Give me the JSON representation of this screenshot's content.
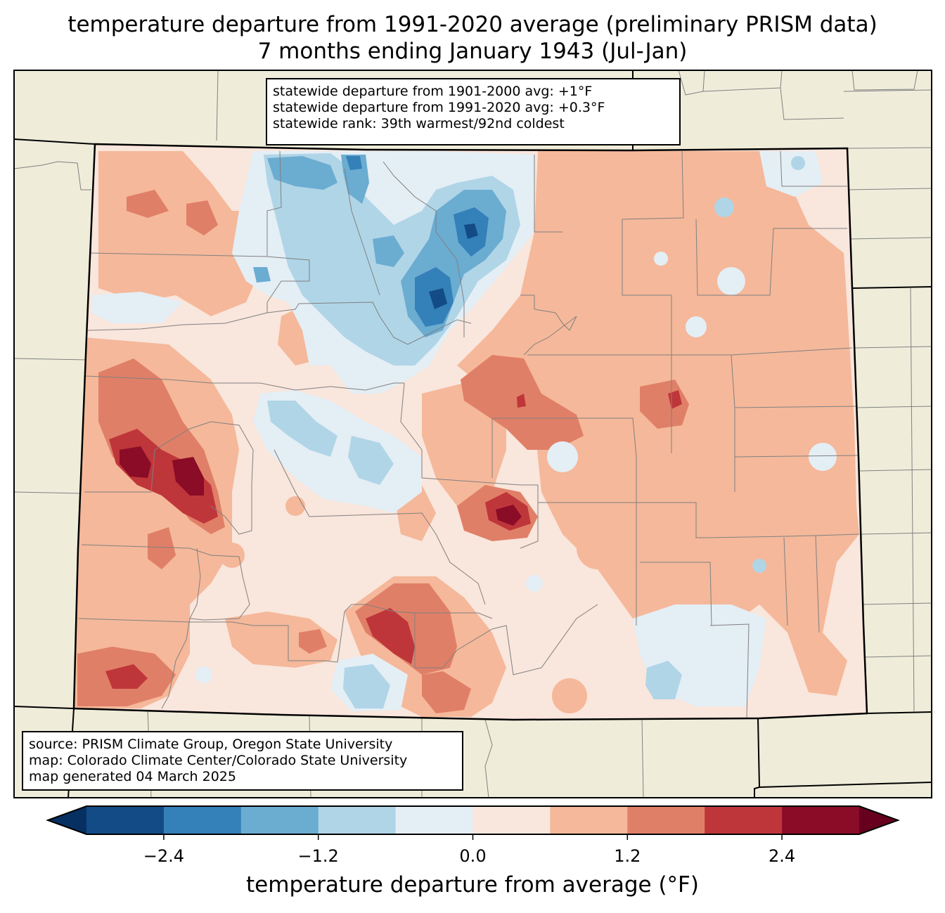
{
  "title": {
    "line1": "temperature departure from 1991-2020 average (preliminary PRISM data)",
    "line2": "7 months ending January 1943 (Jul-Jan)"
  },
  "stats_box": {
    "line1": "statewide departure from 1901-2000 avg: +1°F",
    "line2": "statewide departure from 1991-2020 avg: +0.3°F",
    "line3": "statewide rank: 39th warmest/92nd coldest"
  },
  "credits_box": {
    "line1": "source: PRISM Climate Group, Oregon State University",
    "line2": "map: Colorado Climate Center/Colorado State University",
    "line3": "map generated 04 March 2025"
  },
  "colorbar": {
    "label": "temperature departure from average (°F)",
    "ticks": [
      "−2.4",
      "−1.2",
      "0.0",
      "1.2",
      "2.4"
    ],
    "tick_values": [
      -2.4,
      -1.2,
      0.0,
      1.2,
      2.4
    ],
    "range": [
      -3.0,
      3.0
    ],
    "bins": [
      {
        "from": -3.0,
        "to": -2.4,
        "color": "#134b87"
      },
      {
        "from": -2.4,
        "to": -1.8,
        "color": "#3480b9"
      },
      {
        "from": -1.8,
        "to": -1.2,
        "color": "#6bacd1"
      },
      {
        "from": -1.2,
        "to": -0.6,
        "color": "#b0d5e7"
      },
      {
        "from": -0.6,
        "to": 0.0,
        "color": "#e4eef5"
      },
      {
        "from": 0.0,
        "to": 0.6,
        "color": "#f9e6dc"
      },
      {
        "from": 0.6,
        "to": 1.2,
        "color": "#f5b89a"
      },
      {
        "from": 1.2,
        "to": 1.8,
        "color": "#e07f67"
      },
      {
        "from": 1.8,
        "to": 2.4,
        "color": "#bf363a"
      },
      {
        "from": 2.4,
        "to": 3.0,
        "color": "#8a0c27"
      }
    ],
    "under_color": "#053061",
    "over_color": "#67001f"
  },
  "colors": {
    "land_outside": "#efedda",
    "county_lines": "#808080",
    "state_border": "#000000"
  }
}
